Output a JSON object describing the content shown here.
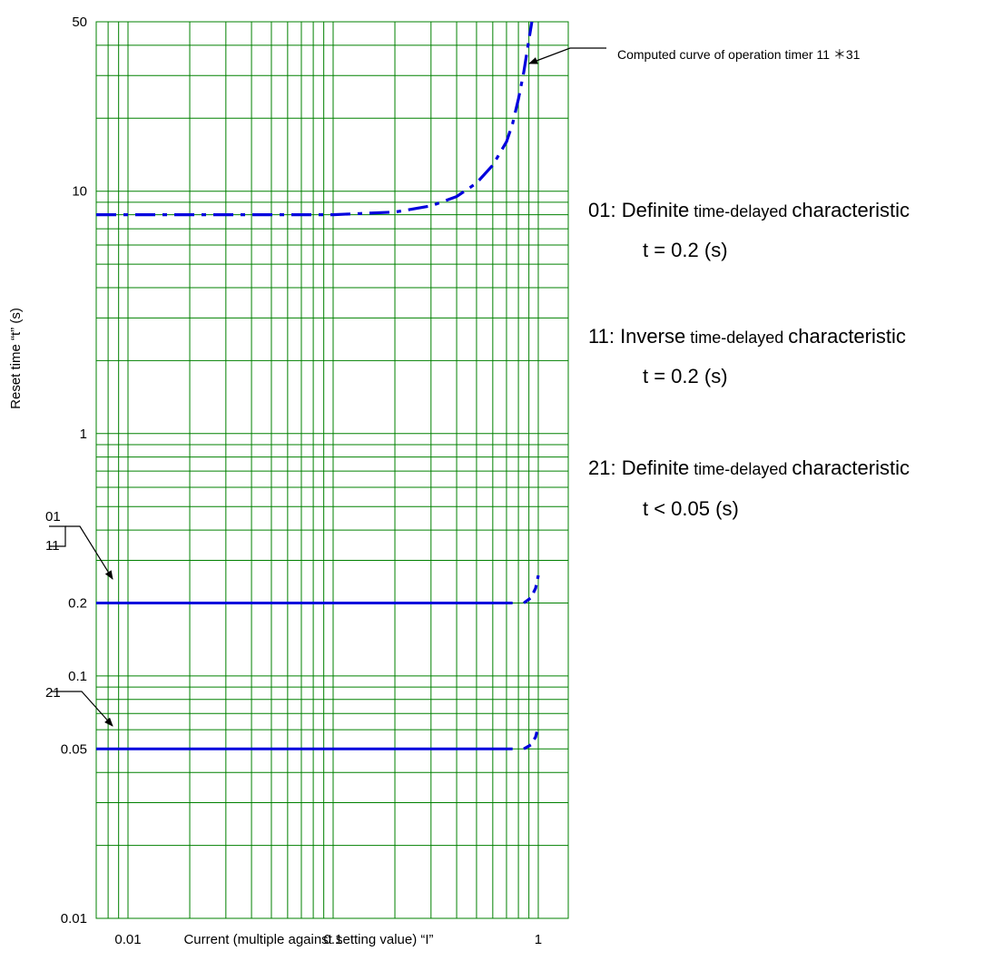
{
  "chart_data": {
    "type": "line",
    "title": "",
    "xlabel": "Current (multiple against setting value) “I”",
    "ylabel": "Reset time “t” (s)",
    "x_scale": "log",
    "y_scale": "log",
    "xlim": [
      0.007,
      1.4
    ],
    "ylim": [
      0.01,
      50
    ],
    "grid": true,
    "grid_color": "#008000",
    "series_color": "#0000dd",
    "x_tick_labels": [
      {
        "value": 0.01,
        "label": "0.01"
      },
      {
        "value": 0.1,
        "label": "0.1"
      },
      {
        "value": 1,
        "label": "1"
      }
    ],
    "y_tick_labels": [
      {
        "value": 50,
        "label": "50"
      },
      {
        "value": 10,
        "label": "10"
      },
      {
        "value": 1,
        "label": "1"
      },
      {
        "value": 0.2,
        "label": "0.2"
      },
      {
        "value": 0.1,
        "label": "0.1"
      },
      {
        "value": 0.05,
        "label": "0.05"
      },
      {
        "value": 0.01,
        "label": "0.01"
      }
    ],
    "series": [
      {
        "style": "dash-dot",
        "x": [
          0.007,
          0.1,
          0.2,
          0.3,
          0.4,
          0.5,
          0.6,
          0.7,
          0.75,
          0.8,
          0.85,
          0.9,
          0.93
        ],
        "y": [
          8.0,
          8.0,
          8.2,
          8.7,
          9.5,
          10.8,
          12.8,
          16.0,
          19.0,
          24.0,
          31.0,
          42.0,
          50.0
        ]
      },
      {
        "style": "solid",
        "x": [
          0.007,
          0.75
        ],
        "y": [
          0.2,
          0.2
        ]
      },
      {
        "style": "dashed",
        "x": [
          0.85,
          0.92,
          0.97,
          1.0
        ],
        "y": [
          0.2,
          0.21,
          0.23,
          0.26
        ]
      },
      {
        "style": "solid",
        "x": [
          0.007,
          0.75
        ],
        "y": [
          0.05,
          0.05
        ]
      },
      {
        "style": "dashed",
        "x": [
          0.85,
          0.92,
          0.97,
          1.0
        ],
        "y": [
          0.05,
          0.052,
          0.056,
          0.062
        ]
      }
    ],
    "annotations": {
      "curve_label": "Computed curve of operation timer 11 ＊31",
      "label_01": "01",
      "label_11": "11",
      "label_21": "21"
    }
  },
  "legend_notes": [
    {
      "code": "01: ",
      "word": "Definite",
      "small": " time-delayed ",
      "tail": "characteristic",
      "condition": "t = 0.2 (s)"
    },
    {
      "code": "11: ",
      "word": "Inverse",
      "small": " time-delayed ",
      "tail": "characteristic",
      "condition": "t = 0.2 (s)"
    },
    {
      "code": "21: ",
      "word": "Definite",
      "small": " time-delayed ",
      "tail": "characteristic",
      "condition": "t < 0.05 (s)"
    }
  ]
}
